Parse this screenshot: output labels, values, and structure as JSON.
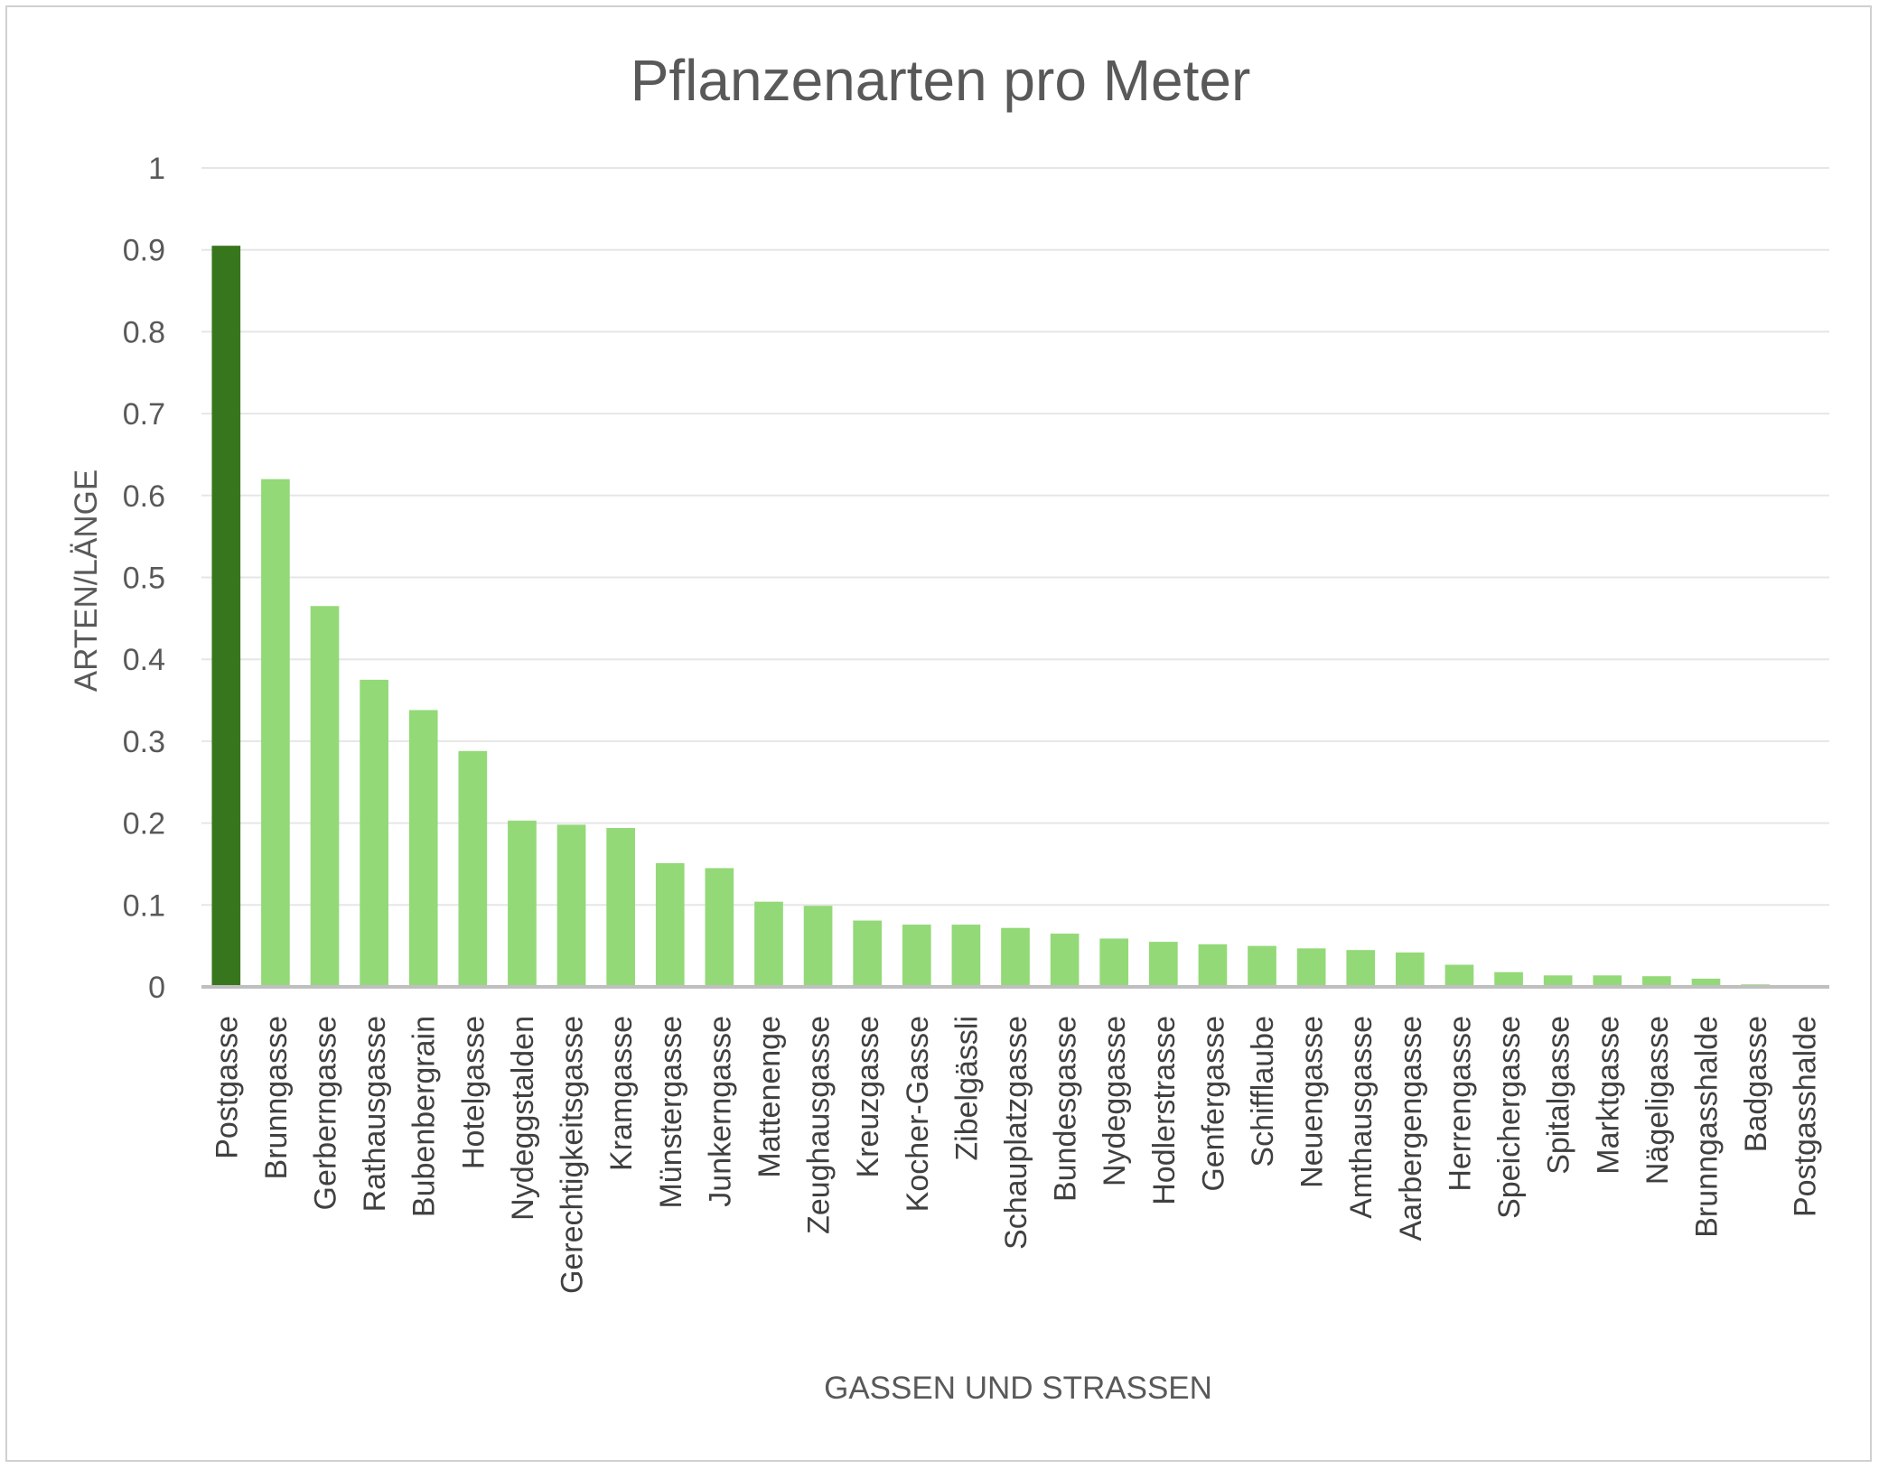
{
  "chart_data": {
    "type": "bar",
    "title": "Pflanzenarten pro Meter",
    "xlabel": "GASSEN UND STRASSEN",
    "ylabel": "ARTEN/LÄNGE",
    "ylim": [
      0,
      1
    ],
    "yticks": [
      "0",
      "0.1",
      "0.2",
      "0.3",
      "0.4",
      "0.5",
      "0.6",
      "0.7",
      "0.8",
      "0.9",
      "1"
    ],
    "grid": true,
    "legend": "none",
    "colors": {
      "highlight": "#38761d",
      "bar": "#93d978",
      "grid": "#e6e6e6",
      "axis": "#bfbfbf"
    },
    "highlight_index": 0,
    "categories": [
      "Postgasse",
      "Brunngasse",
      "Gerberngasse",
      "Rathausgasse",
      "Bubenbergrain",
      "Hotelgasse",
      "Nydeggstalden",
      "Gerechtigkeitsgasse",
      "Kramgasse",
      "Münstergasse",
      "Junkerngasse",
      "Mattenenge",
      "Zeughausgasse",
      "Kreuzgasse",
      "Kocher-Gasse",
      "Zibelgässli",
      "Schauplatzgasse",
      "Bundesgasse",
      "Nydeggasse",
      "Hodlerstrasse",
      "Genfergasse",
      "Schifflaube",
      "Neuengasse",
      "Amthausgasse",
      "Aarbergengasse",
      "Herrengasse",
      "Speichergasse",
      "Spitalgasse",
      "Marktgasse",
      "Nägeligasse",
      "Brunngasshalde",
      "Badgasse",
      "Postgasshalde"
    ],
    "values": [
      0.905,
      0.62,
      0.465,
      0.375,
      0.338,
      0.288,
      0.203,
      0.198,
      0.194,
      0.151,
      0.145,
      0.104,
      0.099,
      0.081,
      0.076,
      0.076,
      0.072,
      0.065,
      0.059,
      0.055,
      0.052,
      0.05,
      0.047,
      0.045,
      0.042,
      0.027,
      0.018,
      0.014,
      0.014,
      0.013,
      0.01,
      0.003,
      0.0
    ]
  }
}
